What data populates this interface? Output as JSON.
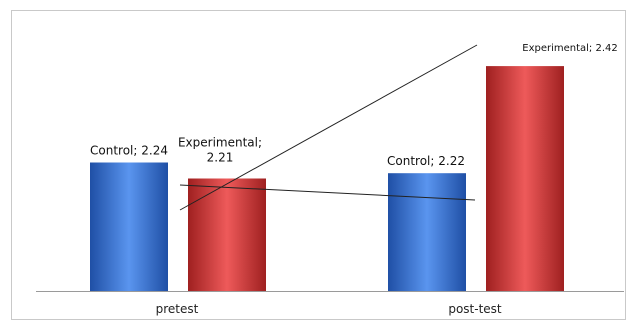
{
  "chart_data": {
    "type": "bar",
    "title": "",
    "xlabel": "",
    "ylabel": "",
    "categories": [
      "pretest",
      "post-test"
    ],
    "series": [
      {
        "name": "Control",
        "values": [
          2.24,
          2.22
        ],
        "color": "#3a73d1",
        "color_light": "#5a95ef",
        "color_dark": "#1f4fa5"
      },
      {
        "name": "Experimental",
        "values": [
          2.21,
          2.42
        ],
        "color": "#d63a3a",
        "color_light": "#ee5a5a",
        "color_dark": "#9f2020"
      }
    ],
    "data_labels": [
      [
        "Control; 2.24",
        "Control; 2.22"
      ],
      [
        [
          "Experimental;",
          "2.21"
        ],
        "Experimental; 2.42"
      ]
    ],
    "ylim": [
      2.0,
      2.45
    ],
    "grid": false,
    "legend": "none",
    "annotation_lines": [
      {
        "from": {
          "category": "pretest",
          "series": "Control"
        },
        "to": {
          "category": "post-test",
          "series": "Control"
        }
      },
      {
        "from": {
          "category": "pretest",
          "series": "Experimental"
        },
        "to": {
          "category": "post-test",
          "series": "Experimental"
        }
      }
    ]
  }
}
